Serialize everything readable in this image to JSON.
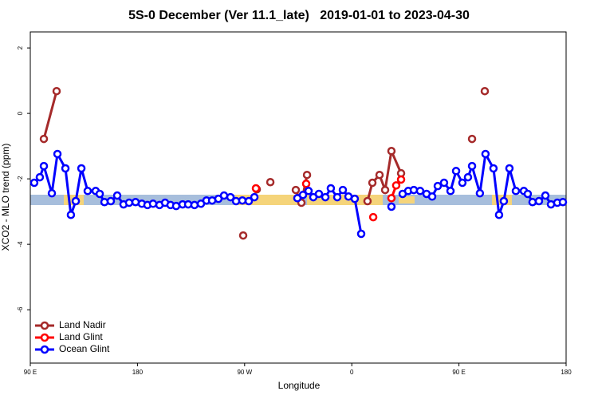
{
  "chart_data": {
    "type": "line",
    "title": "5S-0 December (Ver 11.1_late)   2019-01-01 to 2023-04-30",
    "x_label": "Longitude",
    "y_label": "XCO2 - MLO trend (ppm)",
    "xlim": [
      90,
      540
    ],
    "xticks": [
      {
        "value": 90,
        "label": "90 E"
      },
      {
        "value": 180,
        "label": "180"
      },
      {
        "value": 270,
        "label": "90 W"
      },
      {
        "value": 360,
        "label": "0"
      },
      {
        "value": 450,
        "label": "90 E"
      },
      {
        "value": 540,
        "label": "180"
      }
    ],
    "ylim": [
      -7.63,
      2.49
    ],
    "yticks": [
      2,
      0,
      -2,
      -4,
      -6
    ],
    "legend": "bottom-left",
    "series": [
      {
        "name": "Land Nadir",
        "color": "#a52a2a",
        "x": [
          101.4,
          112.1,
          null,
          268.8,
          null,
          280.2,
          null,
          291.6,
          null,
          313.0,
          317.7,
          322.4,
          null,
          373.2,
          377.3,
          383.3,
          388.0,
          393.3,
          401.4,
          null,
          461.0,
          null,
          471.7
        ],
        "values": [
          -0.78,
          0.68,
          null,
          -3.73,
          null,
          -2.32,
          null,
          -2.1,
          null,
          -2.34,
          -2.73,
          -1.88,
          null,
          -2.68,
          -2.12,
          -1.88,
          -2.34,
          -1.15,
          -1.83,
          null,
          -0.78,
          null,
          0.68
        ]
      },
      {
        "name": "Land Glint",
        "color": "#ff0000",
        "x": [
          279.5,
          null,
          321.7,
          null,
          378.0,
          null,
          393.3,
          397.3,
          401.4
        ],
        "values": [
          -2.29,
          null,
          -2.15,
          null,
          -3.17,
          null,
          -2.59,
          -2.2,
          -2.02
        ]
      },
      {
        "name": "Ocean Glint",
        "color": "#0000ff",
        "x": [
          93.3,
          98.0,
          101.4,
          108.1,
          112.8,
          119.5,
          124.1,
          128.2,
          132.9,
          138.2,
          144.9,
          148.3,
          152.3,
          157.6,
          163.0,
          168.3,
          173.0,
          178.4,
          183.7,
          188.4,
          193.1,
          198.5,
          203.2,
          207.8,
          212.5,
          217.9,
          222.6,
          227.9,
          233.3,
          238.0,
          242.7,
          248.0,
          252.7,
          258.1,
          262.8,
          268.1,
          273.5,
          278.2,
          null,
          314.3,
          319.0,
          323.7,
          327.7,
          332.4,
          337.8,
          342.4,
          347.8,
          352.5,
          357.2,
          362.5,
          367.9,
          null,
          393.3,
          null,
          402.7,
          407.4,
          412.1,
          417.4,
          422.8,
          427.5,
          432.2,
          437.5,
          442.9,
          447.6,
          452.9,
          457.6,
          461.0,
          467.6,
          472.3,
          479.0,
          483.7,
          487.7,
          492.4,
          497.8,
          504.5,
          507.8,
          511.8,
          517.2,
          522.6,
          527.3,
          532.6,
          537.3
        ],
        "values": [
          -2.12,
          -1.95,
          -1.61,
          -2.44,
          -1.24,
          -1.68,
          -3.1,
          -2.68,
          -1.68,
          -2.37,
          -2.37,
          -2.46,
          -2.71,
          -2.68,
          -2.51,
          -2.78,
          -2.73,
          -2.71,
          -2.76,
          -2.8,
          -2.76,
          -2.8,
          -2.73,
          -2.8,
          -2.83,
          -2.78,
          -2.78,
          -2.8,
          -2.76,
          -2.66,
          -2.66,
          -2.61,
          -2.51,
          -2.56,
          -2.68,
          -2.66,
          -2.68,
          -2.56,
          null,
          -2.59,
          -2.49,
          -2.37,
          -2.56,
          -2.46,
          -2.56,
          -2.29,
          -2.56,
          -2.34,
          -2.54,
          -2.61,
          -3.68,
          null,
          -2.85,
          null,
          -2.46,
          -2.37,
          -2.34,
          -2.37,
          -2.46,
          -2.54,
          -2.22,
          -2.12,
          -2.37,
          -1.76,
          -2.12,
          -1.95,
          -1.61,
          -2.44,
          -1.24,
          -1.68,
          -3.1,
          -2.68,
          -1.68,
          -2.37,
          -2.37,
          -2.46,
          -2.71,
          -2.68,
          -2.51,
          -2.78,
          -2.73,
          -2.71
        ]
      }
    ]
  }
}
